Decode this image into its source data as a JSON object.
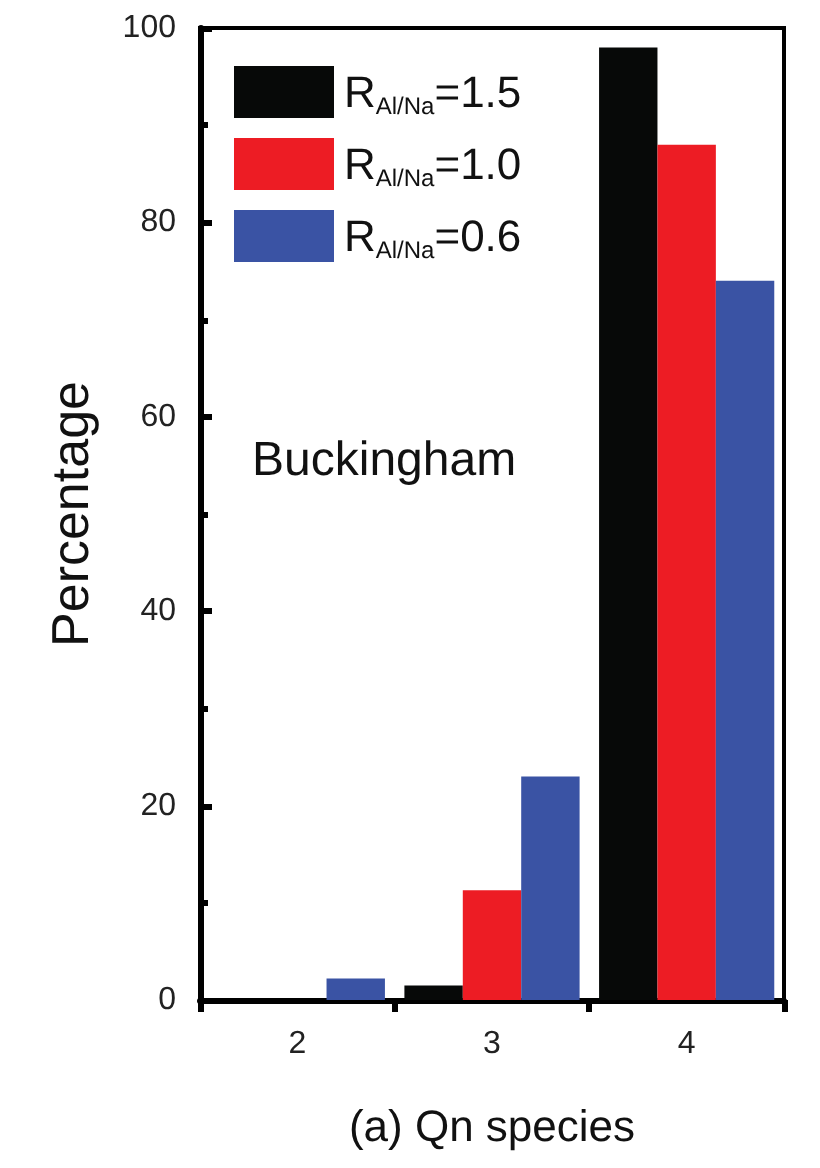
{
  "chart_data": {
    "type": "bar",
    "xlabel": "(a) Qn species",
    "ylabel": "Percentage",
    "categories": [
      "2",
      "3",
      "4"
    ],
    "series": [
      {
        "name": "R$_{Al/Na}$=1.5",
        "color": "#070908",
        "values": [
          0,
          1.5,
          98
        ]
      },
      {
        "name": "R$_{Al/Na}$=1.0",
        "color": "#ed1c24",
        "values": [
          0,
          11.3,
          88
        ]
      },
      {
        "name": "R$_{Al/Na}$=0.6",
        "color": "#3a53a4",
        "values": [
          2.2,
          23,
          74
        ]
      }
    ],
    "ylim": [
      0,
      100
    ],
    "yticks": [
      0,
      20,
      40,
      60,
      80,
      100
    ],
    "grid": false,
    "legend": "top left",
    "annotations": [
      "Buckingham"
    ]
  }
}
